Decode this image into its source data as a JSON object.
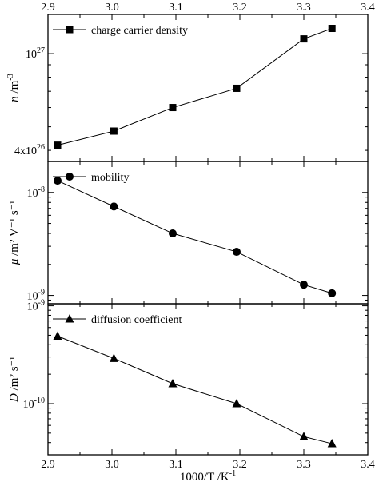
{
  "chart_data": {
    "type": "scatter",
    "shared_x": {
      "label": "1000/T /K",
      "label_exp": "-1",
      "range": [
        2.9,
        3.4
      ],
      "ticks": [
        "2.9",
        "3.0",
        "3.1",
        "3.2",
        "3.3",
        "3.4"
      ],
      "tick_values": [
        2.9,
        3.0,
        3.1,
        3.2,
        3.3,
        3.4
      ]
    },
    "panels": [
      {
        "ylabel": {
          "italic": "n",
          "rest": " /m",
          "sup": "-3"
        },
        "yscale": "log",
        "ylim": [
          3.6e+26,
          1.45e+27
        ],
        "yticks": [
          {
            "value": 4e+26,
            "mant": "4x10",
            "exp": "26"
          },
          {
            "value": 1e+27,
            "mant": "10",
            "exp": "27"
          }
        ],
        "series": [
          {
            "name": "charge carrier density",
            "marker": "square",
            "x": [
              2.915,
              3.003,
              3.095,
              3.195,
              3.3,
              3.344
            ],
            "y": [
              4.2e+26,
              4.8e+26,
              6e+26,
              7.2e+26,
              1.15e+27,
              1.27e+27
            ]
          }
        ]
      },
      {
        "ylabel": {
          "italic": "μ",
          "rest": " /m² V⁻¹ s⁻¹"
        },
        "yscale": "log",
        "ylim": [
          8.3e-10,
          2e-08
        ],
        "yticks": [
          {
            "value": 1e-08,
            "mant": "10",
            "exp": "-8"
          },
          {
            "value": 1e-09,
            "mant": "10",
            "exp": "-9"
          }
        ],
        "series": [
          {
            "name": "mobility",
            "marker": "circle",
            "x": [
              2.915,
              3.003,
              3.095,
              3.195,
              3.3,
              3.344
            ],
            "y": [
              1.3e-08,
              7.3e-09,
              4e-09,
              2.65e-09,
              1.27e-09,
              1.05e-09
            ]
          }
        ]
      },
      {
        "ylabel": {
          "italic": "D",
          "rest": " /m² s⁻¹"
        },
        "yscale": "log",
        "ylim": [
          3e-11,
          1.05e-09
        ],
        "yticks": [
          {
            "value": 1e-09,
            "mant": "10",
            "exp": "-9"
          },
          {
            "value": 1e-10,
            "mant": "10",
            "exp": "-10"
          }
        ],
        "series": [
          {
            "name": "diffusion coefficient",
            "marker": "triangle",
            "x": [
              2.915,
              3.003,
              3.095,
              3.195,
              3.3,
              3.344
            ],
            "y": [
              4.9e-10,
              2.9e-10,
              1.6e-10,
              1e-10,
              4.6e-11,
              3.9e-11
            ]
          }
        ]
      }
    ],
    "grid": false,
    "legend": "top-left"
  }
}
